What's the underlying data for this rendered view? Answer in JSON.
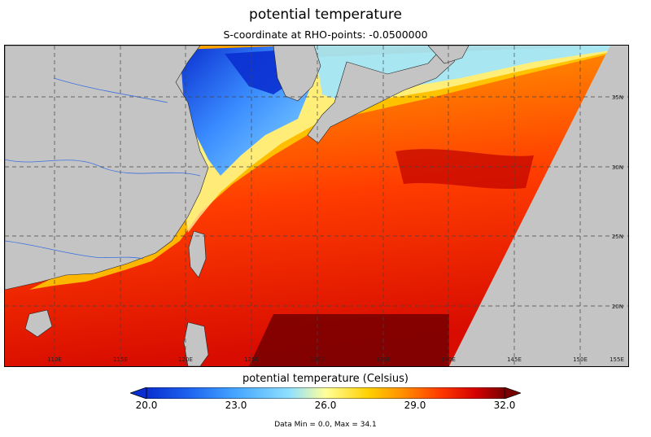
{
  "title": "potential temperature",
  "subtitle": "S-coordinate at RHO-points: -0.0500000",
  "colorbar": {
    "title": "potential temperature (Celsius)",
    "min": 20.0,
    "max": 32.0,
    "ticks": [
      "20.0",
      "23.0",
      "26.0",
      "29.0",
      "32.0"
    ],
    "colors": [
      "#0a2fd0",
      "#1e64f0",
      "#46a6ff",
      "#8fe0ff",
      "#ffff9a",
      "#ffd000",
      "#ff8c00",
      "#ff3a00",
      "#d40000",
      "#7a0000"
    ]
  },
  "data_range_text": "Data Min = 0.0, Max = 34.1",
  "map": {
    "lon_labels": [
      "110E",
      "115E",
      "120E",
      "125E",
      "130E",
      "135E",
      "140E",
      "145E",
      "150E",
      "155E"
    ],
    "lat_labels": [
      "35N",
      "30N",
      "25N",
      "20N"
    ],
    "land_color": "#c4c4c4",
    "no_data_color": "#c4c4c4"
  }
}
